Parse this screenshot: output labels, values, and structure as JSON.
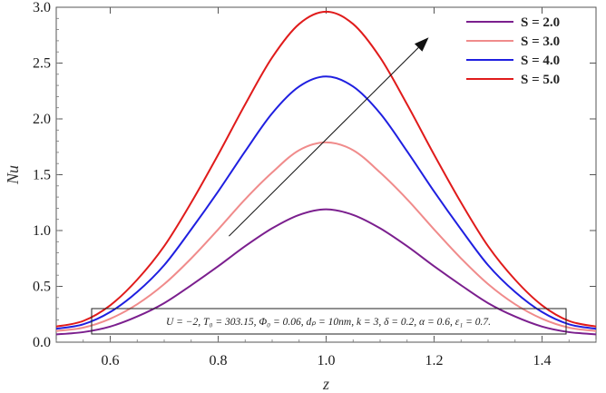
{
  "chart_data": {
    "type": "line",
    "title": "",
    "xlabel": "z",
    "ylabel": "Nu",
    "xlim": [
      0.5,
      1.5
    ],
    "ylim": [
      0,
      3.0
    ],
    "x_ticks": [
      0.6,
      0.8,
      1.0,
      1.2,
      1.4
    ],
    "x_tick_labels": [
      "0.6",
      "0.8",
      "1.0",
      "1.2",
      "1.4"
    ],
    "y_ticks": [
      0.0,
      0.5,
      1.0,
      1.5,
      2.0,
      2.5,
      3.0
    ],
    "y_tick_labels": [
      "0.0",
      "0.5",
      "1.0",
      "1.5",
      "2.0",
      "2.5",
      "3.0"
    ],
    "grid": false,
    "legend_position": "top-right",
    "x": [
      0.5,
      0.55,
      0.6,
      0.65,
      0.7,
      0.75,
      0.8,
      0.85,
      0.9,
      0.95,
      1.0,
      1.05,
      1.1,
      1.15,
      1.2,
      1.25,
      1.3,
      1.35,
      1.4,
      1.45,
      1.5
    ],
    "series": [
      {
        "name": "S = 2.0",
        "color": "#7b1f8e",
        "values": [
          0.07,
          0.09,
          0.14,
          0.23,
          0.35,
          0.51,
          0.68,
          0.86,
          1.02,
          1.14,
          1.19,
          1.14,
          1.02,
          0.86,
          0.68,
          0.51,
          0.35,
          0.23,
          0.14,
          0.09,
          0.07
        ]
      },
      {
        "name": "S = 3.0",
        "color": "#f08b8b",
        "values": [
          0.1,
          0.13,
          0.21,
          0.34,
          0.52,
          0.75,
          1.01,
          1.28,
          1.52,
          1.72,
          1.79,
          1.72,
          1.52,
          1.28,
          1.01,
          0.75,
          0.52,
          0.34,
          0.21,
          0.13,
          0.1
        ]
      },
      {
        "name": "S = 4.0",
        "color": "#1f1fe0",
        "values": [
          0.12,
          0.16,
          0.27,
          0.45,
          0.69,
          1.01,
          1.35,
          1.71,
          2.05,
          2.29,
          2.38,
          2.29,
          2.05,
          1.71,
          1.35,
          1.01,
          0.69,
          0.45,
          0.27,
          0.16,
          0.12
        ]
      },
      {
        "name": "S = 5.0",
        "color": "#e01b1b",
        "values": [
          0.14,
          0.19,
          0.33,
          0.56,
          0.86,
          1.25,
          1.68,
          2.13,
          2.55,
          2.85,
          2.96,
          2.85,
          2.55,
          2.13,
          1.68,
          1.25,
          0.86,
          0.56,
          0.33,
          0.19,
          0.14
        ]
      }
    ],
    "arrow": {
      "from": [
        0.82,
        0.95
      ],
      "to": [
        1.19,
        2.73
      ],
      "color": "#111111"
    },
    "annotation": "U = −2, T₀ = 303.15, Φ₀ = 0.06, dₚ = 10nm, k = 3, δ = 0.2, α = 0.6, ε₁ = 0.7."
  }
}
